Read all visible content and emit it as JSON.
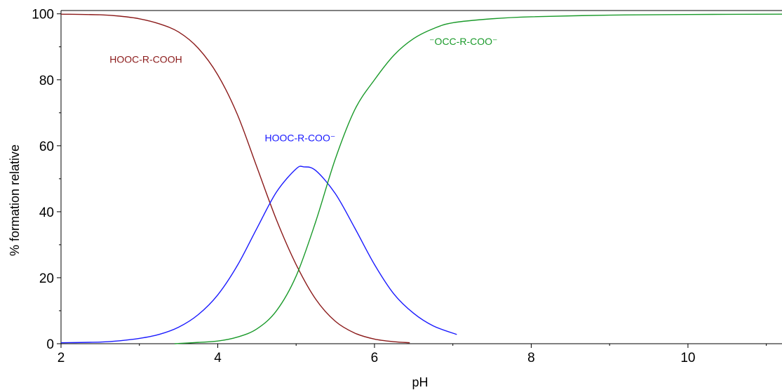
{
  "chart_data": {
    "type": "line",
    "title": "",
    "xlabel": "pH",
    "ylabel": "% formation relative",
    "xlim": [
      2,
      11.2
    ],
    "ylim": [
      0,
      101
    ],
    "xticks": [
      2,
      4,
      6,
      8,
      10
    ],
    "yticks": [
      0,
      20,
      40,
      60,
      80,
      100
    ],
    "grid": false,
    "series": [
      {
        "color": "#8b1a1a",
        "x": [
          2.0,
          2.5,
          2.75,
          3.0,
          3.25,
          3.5,
          3.75,
          4.0,
          4.25,
          4.5,
          4.75,
          5.0,
          5.25,
          5.5,
          5.75,
          6.0,
          6.25,
          6.45
        ],
        "y": [
          99.9,
          99.7,
          99.3,
          98.5,
          97.0,
          94.5,
          89.6,
          81.5,
          69.5,
          53.5,
          37.5,
          24.0,
          13.5,
          6.8,
          3.2,
          1.4,
          0.6,
          0.3
        ]
      },
      {
        "color": "#1a1aff",
        "x": [
          2.0,
          2.5,
          2.75,
          3.0,
          3.25,
          3.5,
          3.75,
          4.0,
          4.25,
          4.5,
          4.75,
          5.0,
          5.1,
          5.25,
          5.5,
          5.75,
          6.0,
          6.25,
          6.5,
          6.75,
          7.05
        ],
        "y": [
          0.3,
          0.5,
          0.9,
          1.6,
          2.8,
          5.0,
          8.8,
          14.8,
          23.7,
          35.0,
          46.0,
          53.0,
          53.6,
          52.5,
          45.5,
          35.0,
          24.0,
          15.0,
          9.2,
          5.4,
          2.8
        ]
      },
      {
        "color": "#1a9a2a",
        "x": [
          3.45,
          3.75,
          4.0,
          4.25,
          4.5,
          4.75,
          5.0,
          5.25,
          5.5,
          5.75,
          6.0,
          6.25,
          6.5,
          6.75,
          7.0,
          7.5,
          8.0,
          9.0,
          10.0,
          11.2
        ],
        "y": [
          0.0,
          0.4,
          0.8,
          2.0,
          4.5,
          10.0,
          20.5,
          37.0,
          56.0,
          71.0,
          80.0,
          87.5,
          92.5,
          95.5,
          97.3,
          98.5,
          99.1,
          99.6,
          99.8,
          99.9
        ]
      }
    ],
    "annotations": [
      {
        "text": "HOOC-R-COOH",
        "x": 2.62,
        "y": 85.2,
        "color": "#8b1a1a"
      },
      {
        "text": "HOOC-R-COO⁻",
        "x": 4.6,
        "y": 61.3,
        "color": "#1a1aff"
      },
      {
        "text": "⁻OCC-R-COO⁻",
        "x": 6.7,
        "y": 90.6,
        "color": "#1a9a2a"
      }
    ]
  }
}
